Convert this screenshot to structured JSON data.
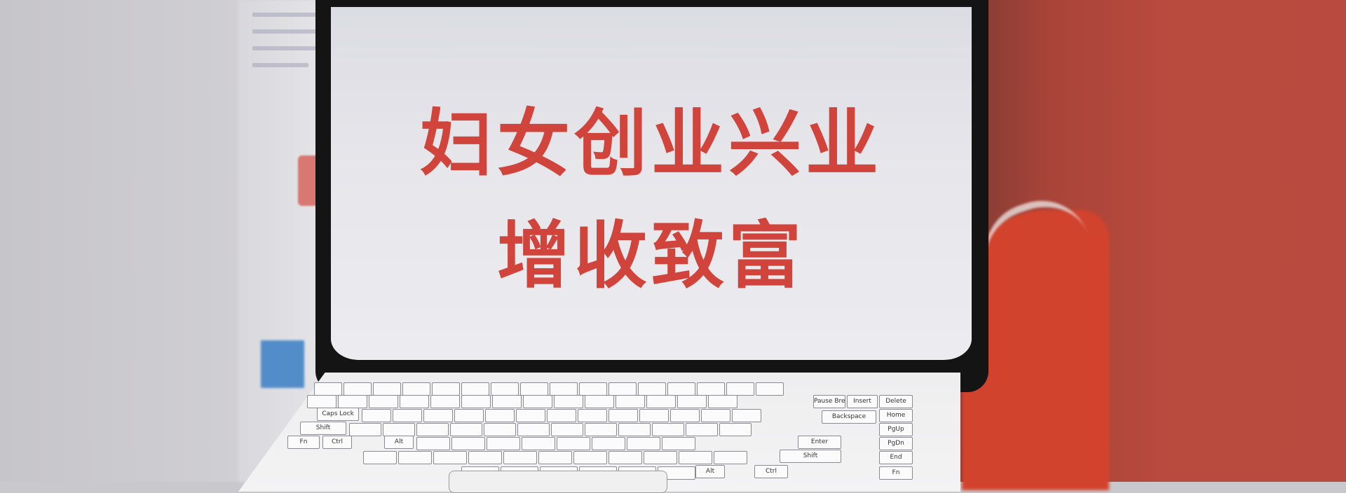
{
  "screen": {
    "line1": "妇女创业兴业",
    "line2": "增收致富"
  },
  "keyboard": {
    "keys": [
      "Caps Lock",
      "Shift",
      "Ctrl",
      "Fn",
      "Alt",
      "Backspace",
      "Enter",
      "Shift",
      "Ctrl",
      "PgUp",
      "PgDn",
      "End",
      "Fn",
      "Home",
      "Insert",
      "Delete",
      "Pause Break",
      "Alt"
    ]
  },
  "colors": {
    "title": "#d0443c",
    "background_right": "#b84a3f"
  }
}
